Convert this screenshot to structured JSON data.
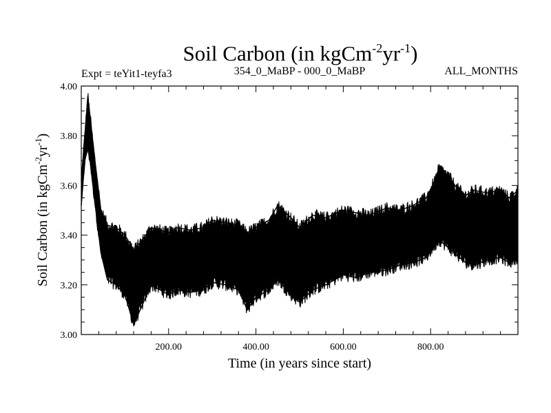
{
  "chart_data": {
    "type": "line",
    "title_main": "Soil Carbon (in kgCm",
    "title_sup1": "-2",
    "title_mid": "yr",
    "title_sup2": "-1",
    "title_end": ")",
    "subtitle_left": "Expt = teYit1-teyfa3",
    "subtitle_center": "354_0_MaBP - 000_0_MaBP",
    "subtitle_right": "ALL_MONTHS",
    "xlabel": "Time (in years since start)",
    "ylabel_main": "Soil Carbon (in kgCm",
    "ylabel_sup1": "-2",
    "ylabel_mid": "yr",
    "ylabel_sup2": "-1",
    "ylabel_end": ")",
    "xlim": [
      0,
      1000
    ],
    "ylim": [
      3.0,
      4.0
    ],
    "x_ticks": [
      {
        "value": 200,
        "label": "200.00"
      },
      {
        "value": 400,
        "label": "400.00"
      },
      {
        "value": 600,
        "label": "600.00"
      },
      {
        "value": 800,
        "label": "800.00"
      }
    ],
    "y_ticks": [
      {
        "value": 3.0,
        "label": "3.00"
      },
      {
        "value": 3.2,
        "label": "3.20"
      },
      {
        "value": 3.4,
        "label": "3.40"
      },
      {
        "value": 3.6,
        "label": "3.60"
      },
      {
        "value": 3.8,
        "label": "3.80"
      },
      {
        "value": 4.0,
        "label": "4.00"
      }
    ],
    "series": [
      {
        "name": "Soil Carbon",
        "color": "#000000",
        "x": [
          0,
          8,
          15,
          20,
          30,
          45,
          60,
          80,
          100,
          120,
          140,
          160,
          180,
          200,
          220,
          250,
          280,
          300,
          330,
          360,
          380,
          400,
          430,
          450,
          480,
          500,
          530,
          560,
          600,
          630,
          660,
          700,
          730,
          760,
          790,
          810,
          820,
          840,
          860,
          880,
          900,
          930,
          960,
          980,
          1000
        ],
        "upper": [
          3.62,
          3.8,
          3.96,
          3.88,
          3.72,
          3.5,
          3.44,
          3.43,
          3.4,
          3.34,
          3.38,
          3.43,
          3.42,
          3.41,
          3.43,
          3.42,
          3.43,
          3.46,
          3.45,
          3.44,
          3.41,
          3.43,
          3.46,
          3.52,
          3.47,
          3.43,
          3.48,
          3.47,
          3.5,
          3.49,
          3.48,
          3.51,
          3.5,
          3.52,
          3.55,
          3.62,
          3.67,
          3.64,
          3.59,
          3.56,
          3.58,
          3.57,
          3.58,
          3.55,
          3.58
        ],
        "lower": [
          3.52,
          3.7,
          3.75,
          3.7,
          3.55,
          3.33,
          3.22,
          3.2,
          3.16,
          3.04,
          3.12,
          3.2,
          3.18,
          3.16,
          3.18,
          3.17,
          3.18,
          3.21,
          3.2,
          3.18,
          3.1,
          3.15,
          3.18,
          3.22,
          3.16,
          3.13,
          3.18,
          3.2,
          3.24,
          3.23,
          3.25,
          3.26,
          3.28,
          3.29,
          3.31,
          3.36,
          3.38,
          3.35,
          3.32,
          3.29,
          3.28,
          3.3,
          3.31,
          3.29,
          3.31
        ]
      }
    ]
  }
}
